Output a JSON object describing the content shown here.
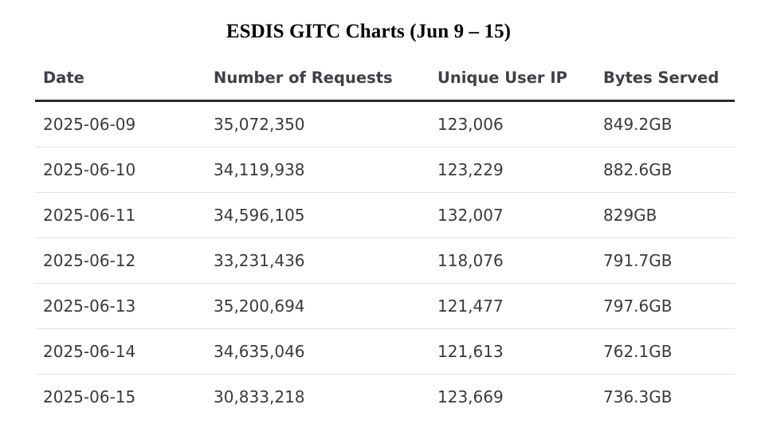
{
  "title": "ESDIS GITC Charts (Jun 9 – 15)",
  "chart_data": {
    "type": "table",
    "title": "ESDIS GITC Charts (Jun 9 – 15)",
    "columns": [
      "Date",
      "Number of Requests",
      "Unique User IP",
      "Bytes Served"
    ],
    "rows": [
      [
        "2025-06-09",
        "35,072,350",
        "123,006",
        "849.2GB"
      ],
      [
        "2025-06-10",
        "34,119,938",
        "123,229",
        "882.6GB"
      ],
      [
        "2025-06-11",
        "34,596,105",
        "132,007",
        "829GB"
      ],
      [
        "2025-06-12",
        "33,231,436",
        "118,076",
        "791.7GB"
      ],
      [
        "2025-06-13",
        "35,200,694",
        "121,477",
        "797.6GB"
      ],
      [
        "2025-06-14",
        "34,635,046",
        "121,613",
        "762.1GB"
      ],
      [
        "2025-06-15",
        "30,833,218",
        "123,669",
        "736.3GB"
      ]
    ]
  }
}
